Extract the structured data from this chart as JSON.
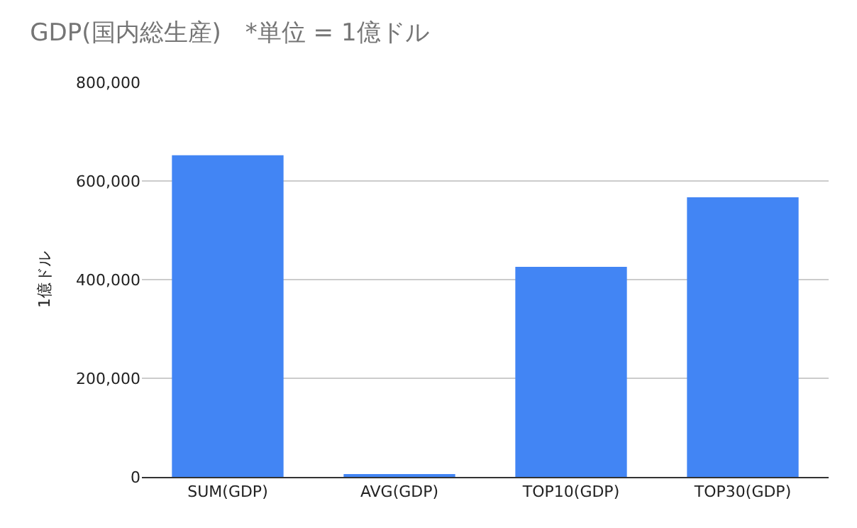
{
  "chart_data": {
    "type": "bar",
    "title": "GDP(国内総生産)　*単位 = 1億ドル",
    "ylabel": "1億ドル",
    "categories": [
      "SUM(GDP)",
      "AVG(GDP)",
      "TOP10(GDP)",
      "TOP30(GDP)"
    ],
    "values": [
      652000,
      3000,
      426000,
      567000
    ],
    "color": "#4285f4",
    "ylim": [
      0,
      800000
    ],
    "yticks": [
      {
        "value": 0,
        "label": "0"
      },
      {
        "value": 200000,
        "label": "200,000"
      },
      {
        "value": 400000,
        "label": "400,000"
      },
      {
        "value": 600000,
        "label": "600,000"
      },
      {
        "value": 800000,
        "label": "800,000"
      }
    ],
    "grid": "y",
    "legend": false
  }
}
